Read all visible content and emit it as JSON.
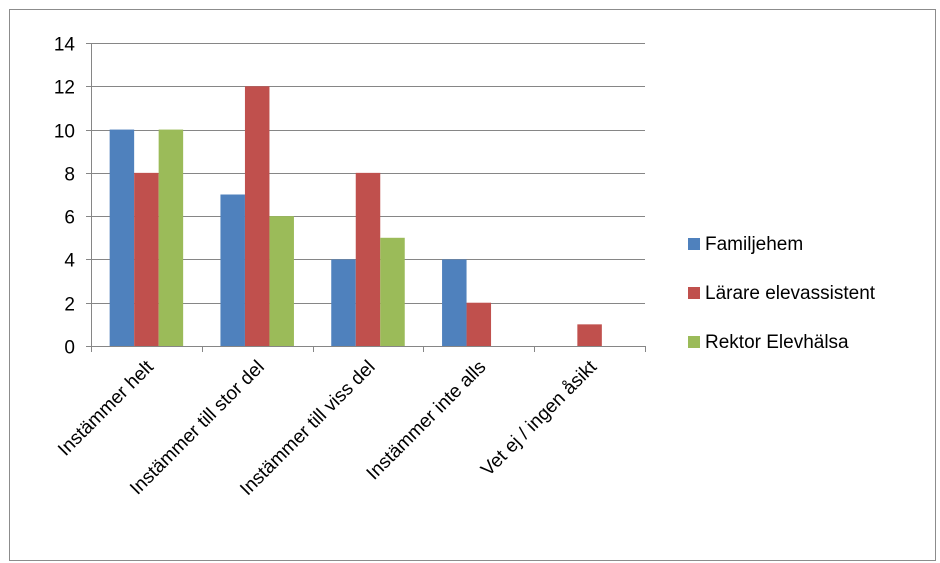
{
  "chart_data": {
    "type": "bar",
    "categories": [
      "Instämmer helt",
      "Instämmer till stor del",
      "Instämmer till viss del",
      "Instämmer inte alls",
      "Vet ej / ingen åsikt"
    ],
    "series": [
      {
        "name": "Familjehem",
        "color": "#4F81BD",
        "values": [
          10,
          7,
          4,
          4,
          0
        ]
      },
      {
        "name": "Lärare elevassistent",
        "color": "#C0504D",
        "values": [
          8,
          12,
          8,
          2,
          1
        ]
      },
      {
        "name": "Rektor Elevhälsa",
        "color": "#9BBB59",
        "values": [
          10,
          6,
          5,
          0,
          0
        ]
      }
    ],
    "title": "",
    "xlabel": "",
    "ylabel": "",
    "ylim": [
      0,
      14
    ],
    "yticks": [
      0,
      2,
      4,
      6,
      8,
      10,
      12,
      14
    ],
    "grid": true,
    "legend_position": "right"
  }
}
